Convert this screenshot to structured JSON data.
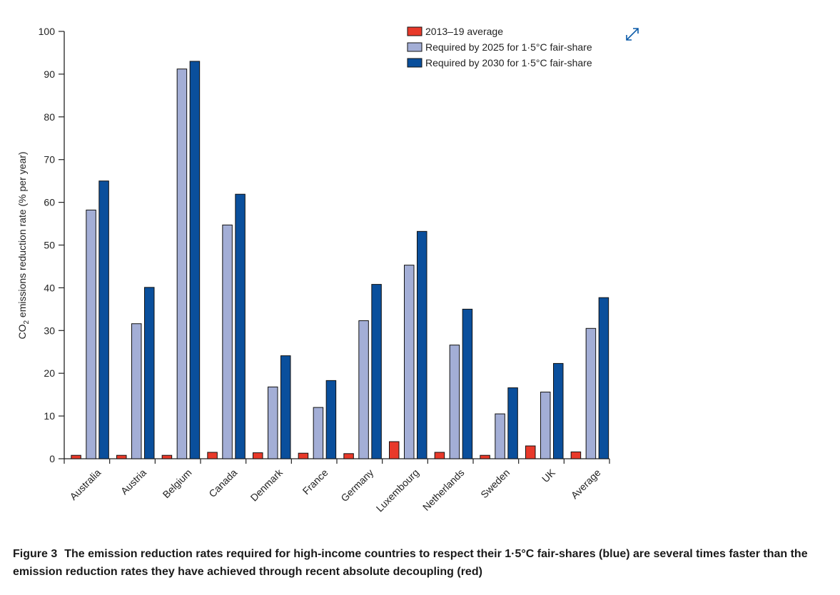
{
  "chart_data": {
    "type": "bar",
    "title": "",
    "xlabel": "",
    "ylabel_prefix": "CO",
    "ylabel_sub": "2",
    "ylabel_suffix": " emissions reduction rate (% per year)",
    "ylim": [
      0,
      100
    ],
    "yticks": [
      0,
      10,
      20,
      30,
      40,
      50,
      60,
      70,
      80,
      90,
      100
    ],
    "categories": [
      "Australia",
      "Austria",
      "Belgium",
      "Canada",
      "Denmark",
      "France",
      "Germany",
      "Luxembourg",
      "Netherlands",
      "Sweden",
      "UK",
      "Average"
    ],
    "series": [
      {
        "name": "2013–19 average",
        "color": "#e8392a",
        "values": [
          0.8,
          0.8,
          0.8,
          1.5,
          1.4,
          1.3,
          1.2,
          4.0,
          1.5,
          0.8,
          3.0,
          1.6
        ]
      },
      {
        "name": "Required by 2025 for 1·5°C fair-share",
        "color": "#a3aed6",
        "values": [
          58.2,
          31.6,
          91.2,
          54.7,
          16.8,
          12.0,
          32.3,
          45.3,
          26.6,
          10.5,
          15.6,
          30.5
        ]
      },
      {
        "name": "Required by 2030 for 1·5°C fair-share",
        "color": "#0a4f9c",
        "values": [
          65.0,
          40.1,
          93.0,
          61.9,
          24.1,
          18.3,
          40.8,
          53.2,
          35.0,
          16.6,
          22.3,
          37.7
        ]
      }
    ],
    "legend_position": "top-right",
    "grid": false
  },
  "caption": {
    "figure_label": "Figure 3",
    "text": "The emission reduction rates required for high-income countries to respect their 1·5°C fair-shares (blue) are several times faster than the emission reduction rates they have achieved through recent absolute decoupling (red)"
  },
  "icons": {
    "expand": "expand-arrows-icon"
  },
  "colors": {
    "accent": "#0a5aa8"
  }
}
